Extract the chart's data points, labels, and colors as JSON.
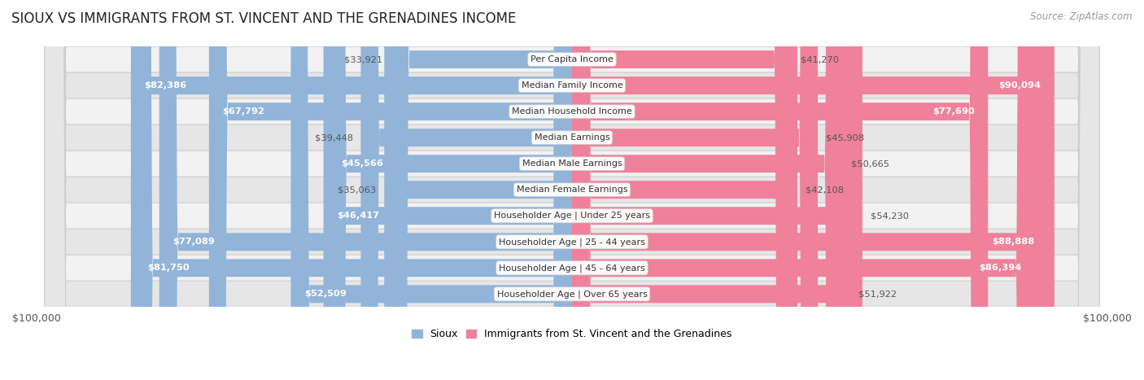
{
  "title": "SIOUX VS IMMIGRANTS FROM ST. VINCENT AND THE GRENADINES INCOME",
  "source": "Source: ZipAtlas.com",
  "categories": [
    "Per Capita Income",
    "Median Family Income",
    "Median Household Income",
    "Median Earnings",
    "Median Male Earnings",
    "Median Female Earnings",
    "Householder Age | Under 25 years",
    "Householder Age | 25 - 44 years",
    "Householder Age | 45 - 64 years",
    "Householder Age | Over 65 years"
  ],
  "sioux_values": [
    33921,
    82386,
    67792,
    39448,
    45566,
    35063,
    46417,
    77089,
    81750,
    52509
  ],
  "immigrant_values": [
    41270,
    90094,
    77690,
    45908,
    50665,
    42108,
    54230,
    88888,
    86394,
    51922
  ],
  "sioux_labels": [
    "$33,921",
    "$82,386",
    "$67,792",
    "$39,448",
    "$45,566",
    "$35,063",
    "$46,417",
    "$77,089",
    "$81,750",
    "$52,509"
  ],
  "immigrant_labels": [
    "$41,270",
    "$90,094",
    "$77,690",
    "$45,908",
    "$50,665",
    "$42,108",
    "$54,230",
    "$88,888",
    "$86,394",
    "$51,922"
  ],
  "max_value": 100000,
  "sioux_color": "#92b4d9",
  "immigrant_color": "#f0819a",
  "bg_color": "#ffffff",
  "row_bg_light": "#f2f2f2",
  "row_bg_dark": "#e6e6e6",
  "label_fontsize": 8.5,
  "title_fontsize": 12,
  "axis_label": "$100,000",
  "legend_sioux": "Sioux",
  "legend_immigrant": "Immigrants from St. Vincent and the Grenadines",
  "sioux_inside_threshold": 45000,
  "immigrant_inside_threshold": 55000
}
